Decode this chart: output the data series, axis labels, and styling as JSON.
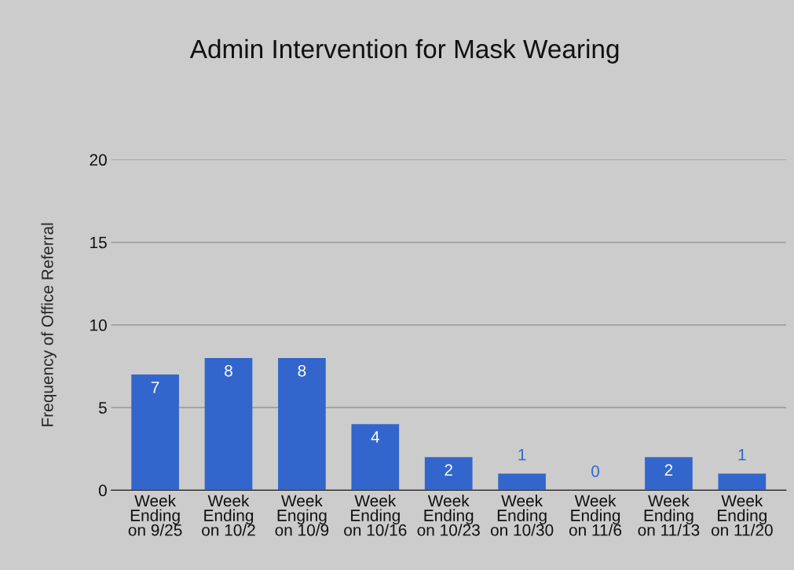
{
  "chart_data": {
    "type": "bar",
    "title": "Admin Intervention for Mask Wearing",
    "ylabel": "Frequency of Office Referral",
    "categories": [
      "Week\nEnding\non 9/25",
      "Week\nEnding\non 10/2",
      "Week\nEnging\non 10/9",
      "Week\nEnding\non 10/16",
      "Week\nEnding\non 10/23",
      "Week\nEnding\non 10/30",
      "Week\nEnding\non 11/6",
      "Week\nEnding\non 11/13",
      "Week\nEnding\non 11/20"
    ],
    "values": [
      7,
      8,
      8,
      4,
      2,
      1,
      0,
      2,
      1
    ],
    "color": "#3366cc",
    "ylim": [
      0,
      20
    ],
    "yticks": [
      0,
      5,
      10,
      15,
      20
    ],
    "grid": "y",
    "data_labels": true,
    "legend": false
  }
}
